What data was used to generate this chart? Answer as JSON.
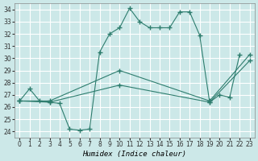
{
  "xlabel": "Humidex (Indice chaleur)",
  "ylabel": "",
  "background_color": "#cce8e8",
  "grid_color": "#ffffff",
  "line_color": "#2e7d6e",
  "xlim": [
    -0.5,
    23.5
  ],
  "ylim": [
    23.5,
    34.5
  ],
  "yticks": [
    24,
    25,
    26,
    27,
    28,
    29,
    30,
    31,
    32,
    33,
    34
  ],
  "xticks": [
    0,
    1,
    2,
    3,
    4,
    5,
    6,
    7,
    8,
    9,
    10,
    11,
    12,
    13,
    14,
    15,
    16,
    17,
    18,
    19,
    20,
    21,
    22,
    23
  ],
  "series": [
    {
      "x": [
        0,
        1,
        2,
        3,
        4,
        5,
        6,
        7,
        8,
        9,
        10,
        11,
        12,
        13,
        14,
        15,
        16,
        17,
        18,
        19,
        20,
        21,
        22
      ],
      "y": [
        26.5,
        27.5,
        26.5,
        26.4,
        26.3,
        24.2,
        24.1,
        24.2,
        30.5,
        32.0,
        32.5,
        34.1,
        33.0,
        32.5,
        32.5,
        32.5,
        33.8,
        33.8,
        31.9,
        26.4,
        27.0,
        26.8,
        30.3
      ]
    },
    {
      "x": [
        0,
        3,
        10,
        19,
        23
      ],
      "y": [
        26.5,
        26.4,
        27.8,
        26.4,
        29.8
      ]
    },
    {
      "x": [
        0,
        3,
        10,
        19,
        23
      ],
      "y": [
        26.5,
        26.5,
        29.0,
        26.5,
        30.3
      ]
    }
  ]
}
